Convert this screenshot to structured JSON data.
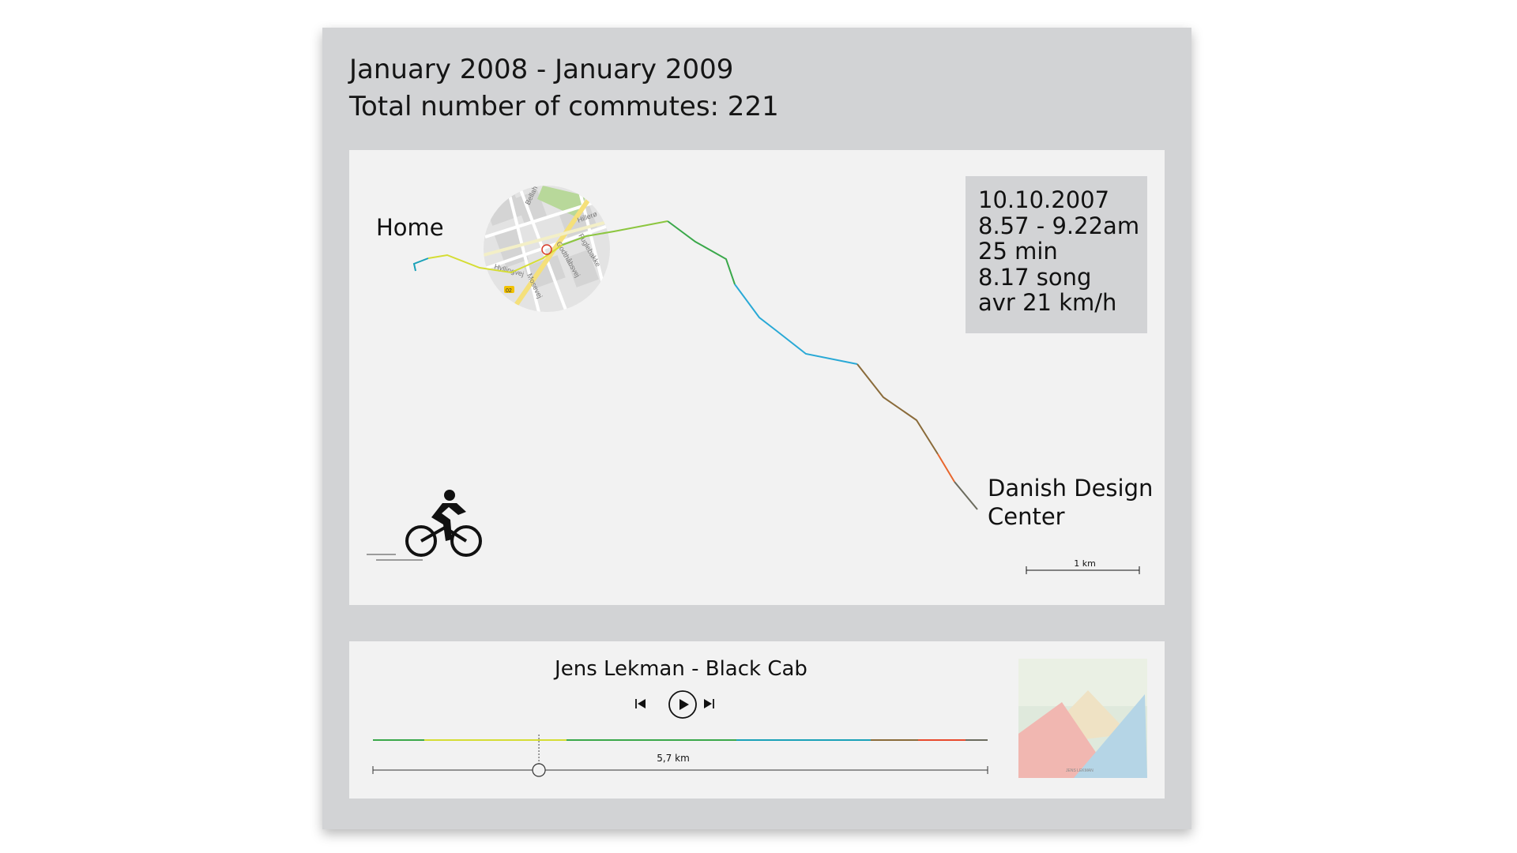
{
  "header": {
    "date_range": "January 2008 - January 2009",
    "total_commutes": "Total number of commutes: 221"
  },
  "map": {
    "start_label": "Home",
    "end_label_line1": "Danish Design",
    "end_label_line2": "Center",
    "scale_label": "1 km",
    "inset_streets": [
      "Bellah",
      "Hillerø",
      "Godthåbsvej",
      "Fuglebakke",
      "Mosevej",
      "Hyllingvej",
      "02"
    ],
    "route_colors": [
      "#1aa1b8",
      "#d5dd34",
      "#8cc63f",
      "#3aa84a",
      "#29a9d6",
      "#8a6b3a",
      "#e8662d",
      "#6b6b5e"
    ]
  },
  "info": {
    "date": "10.10.2007",
    "time": "8.57 - 9.22am",
    "duration": "25 min",
    "songs": "8.17 song",
    "speed": "avr 21 km/h"
  },
  "player": {
    "song": "Jens Lekman - Black Cab",
    "distance": "5,7 km",
    "progress": 0.27,
    "prev_icon": "skip-back-icon",
    "play_icon": "play-icon",
    "next_icon": "skip-forward-icon"
  },
  "album": {
    "art_text": "JENS LEKMAN"
  },
  "icons": {
    "cyclist": "cyclist-icon"
  }
}
